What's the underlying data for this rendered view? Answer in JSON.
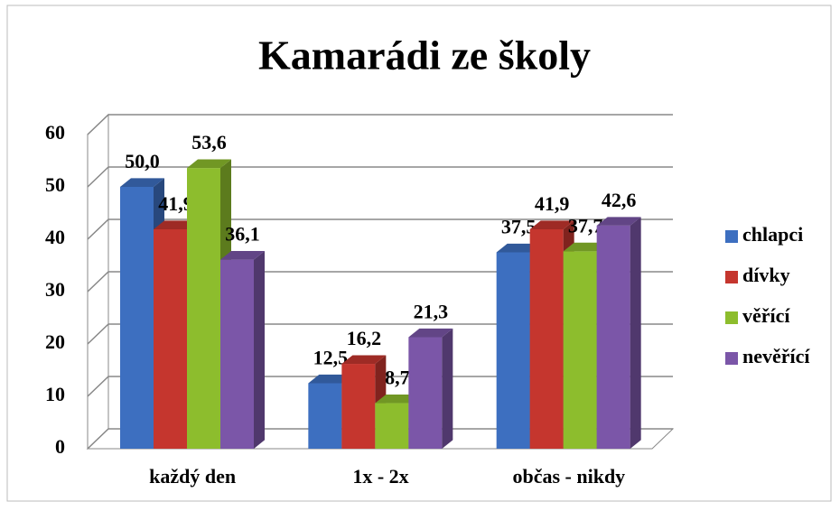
{
  "chart_data": {
    "type": "bar3d",
    "title": "Kamarádi ze školy",
    "categories": [
      "každý den",
      "1x - 2x",
      "občas - nikdy"
    ],
    "series": [
      {
        "name": "chlapci",
        "color": "#3d6fc0",
        "values": [
          50.0,
          12.5,
          37.5
        ],
        "value_labels": [
          "50,0",
          "12,5",
          "37,5"
        ]
      },
      {
        "name": "dívky",
        "color": "#c5362e",
        "values": [
          41.9,
          16.2,
          41.9
        ],
        "value_labels": [
          "41,9",
          "16,2",
          "41,9"
        ]
      },
      {
        "name": "věřící",
        "color": "#8dbd2d",
        "values": [
          53.6,
          8.7,
          37.7
        ],
        "value_labels": [
          "53,6",
          "8,7",
          "37,7"
        ]
      },
      {
        "name": "nevěřící",
        "color": "#7b56a8",
        "values": [
          36.1,
          21.3,
          42.6
        ],
        "value_labels": [
          "36,1",
          "21,3",
          "42,6"
        ]
      }
    ],
    "ylim": [
      0,
      60
    ],
    "yticks": [
      0,
      10,
      20,
      30,
      40,
      50,
      60
    ],
    "grid": true,
    "legend": "right"
  }
}
